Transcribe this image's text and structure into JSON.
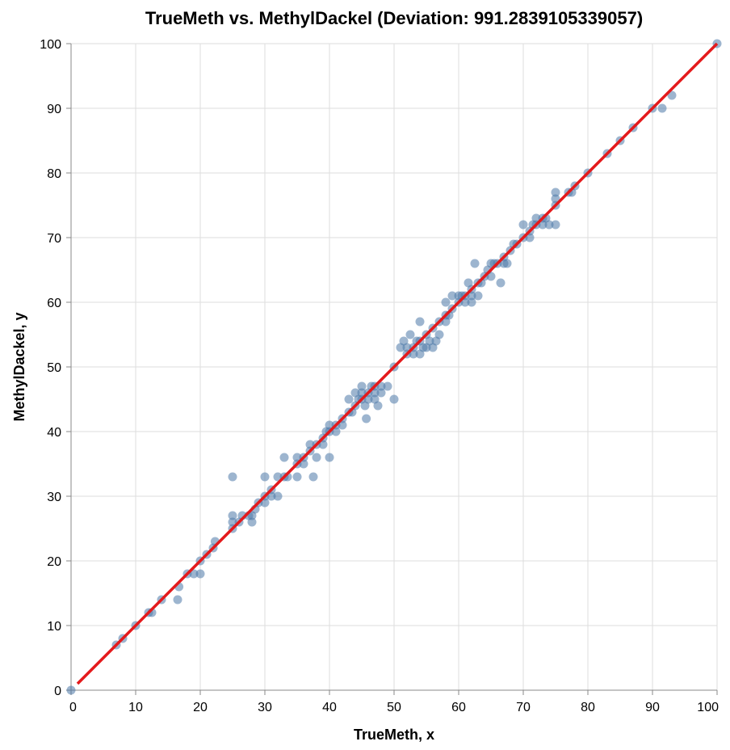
{
  "chart_data": {
    "type": "scatter",
    "title": "TrueMeth vs. MethylDackel (Deviation: 991.2839105339057)",
    "xlabel": "TrueMeth, x",
    "ylabel": "MethylDackel, y",
    "xlim": [
      0,
      100
    ],
    "ylim": [
      0,
      100
    ],
    "x_ticks": [
      "0",
      "10",
      "20",
      "30",
      "40",
      "50",
      "60",
      "70",
      "80",
      "90",
      "100"
    ],
    "y_ticks": [
      "0",
      "10",
      "20",
      "30",
      "40",
      "50",
      "60",
      "70",
      "80",
      "90",
      "100"
    ],
    "grid": true,
    "point_color": "#4c78a8",
    "point_opacity": 0.55,
    "reference_line": {
      "color": "#e41a1c",
      "from": [
        0,
        0
      ],
      "to": [
        100,
        100
      ]
    },
    "series": [
      {
        "points": [
          [
            0,
            0
          ],
          [
            7,
            7
          ],
          [
            8,
            8
          ],
          [
            10,
            10
          ],
          [
            12,
            12
          ],
          [
            12.5,
            12
          ],
          [
            14,
            14
          ],
          [
            16.5,
            14
          ],
          [
            16.7,
            16
          ],
          [
            18,
            18
          ],
          [
            19,
            18
          ],
          [
            20,
            20
          ],
          [
            20,
            18
          ],
          [
            21,
            21
          ],
          [
            22,
            22
          ],
          [
            22.3,
            23
          ],
          [
            25,
            25
          ],
          [
            25,
            26
          ],
          [
            25,
            27
          ],
          [
            25,
            33
          ],
          [
            26,
            26
          ],
          [
            26.5,
            27
          ],
          [
            27.5,
            27
          ],
          [
            28,
            26
          ],
          [
            28,
            27
          ],
          [
            28.5,
            28
          ],
          [
            29,
            29
          ],
          [
            30,
            30
          ],
          [
            30,
            29
          ],
          [
            30,
            33
          ],
          [
            31,
            31
          ],
          [
            31,
            30
          ],
          [
            32,
            33
          ],
          [
            32,
            30
          ],
          [
            33,
            33
          ],
          [
            33,
            36
          ],
          [
            33.5,
            33
          ],
          [
            35,
            35
          ],
          [
            35,
            33
          ],
          [
            35,
            36
          ],
          [
            36,
            35
          ],
          [
            36,
            36
          ],
          [
            37,
            37
          ],
          [
            37,
            38
          ],
          [
            37.5,
            33
          ],
          [
            38,
            38
          ],
          [
            38,
            36
          ],
          [
            39,
            39
          ],
          [
            39,
            38
          ],
          [
            39.5,
            40
          ],
          [
            40,
            40
          ],
          [
            40,
            36
          ],
          [
            40,
            41
          ],
          [
            41,
            40
          ],
          [
            41,
            41
          ],
          [
            42,
            42
          ],
          [
            42,
            41
          ],
          [
            43,
            43
          ],
          [
            43,
            45
          ],
          [
            43.5,
            43
          ],
          [
            44,
            44
          ],
          [
            44,
            46
          ],
          [
            44.5,
            45
          ],
          [
            45,
            45
          ],
          [
            45,
            47
          ],
          [
            45,
            46
          ],
          [
            45.5,
            44
          ],
          [
            45.7,
            42
          ],
          [
            46,
            46
          ],
          [
            46,
            45
          ],
          [
            46.5,
            47
          ],
          [
            47,
            47
          ],
          [
            47,
            46
          ],
          [
            47,
            45
          ],
          [
            47.5,
            44
          ],
          [
            48,
            46
          ],
          [
            48,
            47
          ],
          [
            49,
            47
          ],
          [
            50,
            50
          ],
          [
            50,
            45
          ],
          [
            51,
            53
          ],
          [
            51.5,
            54
          ],
          [
            52,
            52
          ],
          [
            52,
            53
          ],
          [
            52.5,
            55
          ],
          [
            53,
            52
          ],
          [
            53,
            53
          ],
          [
            53.5,
            54
          ],
          [
            54,
            54
          ],
          [
            54,
            52
          ],
          [
            54,
            57
          ],
          [
            54.5,
            53
          ],
          [
            55,
            55
          ],
          [
            55,
            53
          ],
          [
            55.5,
            54
          ],
          [
            56,
            56
          ],
          [
            56,
            53
          ],
          [
            56.5,
            54
          ],
          [
            57,
            57
          ],
          [
            57,
            55
          ],
          [
            58,
            58
          ],
          [
            58,
            57
          ],
          [
            58,
            60
          ],
          [
            58.5,
            58
          ],
          [
            59,
            59
          ],
          [
            59,
            61
          ],
          [
            60,
            60
          ],
          [
            60,
            61
          ],
          [
            60.5,
            61
          ],
          [
            61,
            61
          ],
          [
            61,
            60
          ],
          [
            61.5,
            63
          ],
          [
            62,
            62
          ],
          [
            62,
            60
          ],
          [
            62,
            61
          ],
          [
            62.5,
            66
          ],
          [
            63,
            63
          ],
          [
            63,
            61
          ],
          [
            63.5,
            63
          ],
          [
            64,
            64
          ],
          [
            64.5,
            65
          ],
          [
            65,
            66
          ],
          [
            65,
            64
          ],
          [
            65.5,
            66
          ],
          [
            66,
            66
          ],
          [
            66.5,
            63
          ],
          [
            67,
            66
          ],
          [
            67,
            67
          ],
          [
            67.5,
            66
          ],
          [
            68,
            68
          ],
          [
            68.5,
            69
          ],
          [
            69,
            69
          ],
          [
            70,
            70
          ],
          [
            70,
            72
          ],
          [
            71,
            70
          ],
          [
            71,
            71
          ],
          [
            71.5,
            72
          ],
          [
            72,
            72
          ],
          [
            72,
            73
          ],
          [
            73,
            72
          ],
          [
            73,
            73
          ],
          [
            73.5,
            73
          ],
          [
            74,
            72
          ],
          [
            75,
            75
          ],
          [
            75,
            76
          ],
          [
            75,
            77
          ],
          [
            75,
            72
          ],
          [
            77,
            77
          ],
          [
            77.5,
            77
          ],
          [
            78,
            78
          ],
          [
            80,
            80
          ],
          [
            83,
            83
          ],
          [
            85,
            85
          ],
          [
            87,
            87
          ],
          [
            90,
            90
          ],
          [
            91.5,
            90
          ],
          [
            93,
            92
          ],
          [
            100,
            100
          ]
        ]
      }
    ]
  }
}
